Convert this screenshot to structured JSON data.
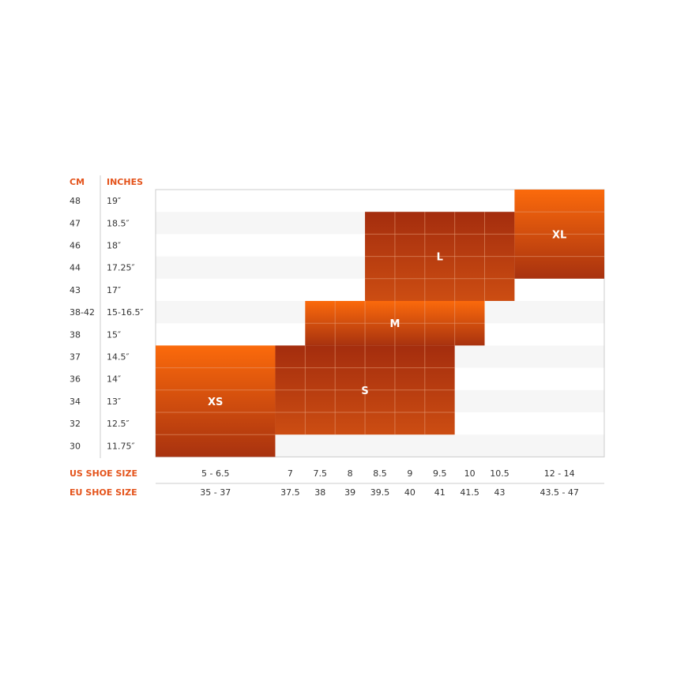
{
  "chart_data": {
    "type": "heatmap",
    "title": "",
    "headers": {
      "cm": "CM",
      "inches": "INCHES"
    },
    "rows": [
      {
        "cm": "48",
        "inches": "19″"
      },
      {
        "cm": "47",
        "inches": "18.5″"
      },
      {
        "cm": "46",
        "inches": "18″"
      },
      {
        "cm": "44",
        "inches": "17.25″"
      },
      {
        "cm": "43",
        "inches": "17″"
      },
      {
        "cm": "38-42",
        "inches": "15-16.5″"
      },
      {
        "cm": "38",
        "inches": "15″"
      },
      {
        "cm": "37",
        "inches": "14.5″"
      },
      {
        "cm": "36",
        "inches": "14″"
      },
      {
        "cm": "34",
        "inches": "13″"
      },
      {
        "cm": "32",
        "inches": "12.5″"
      },
      {
        "cm": "30",
        "inches": "11.75″"
      }
    ],
    "axis_labels": {
      "us": "US SHOE SIZE",
      "eu": "EU SHOE SIZE"
    },
    "columns": [
      {
        "us": "5 - 6.5",
        "eu": "35 - 37",
        "width": 4
      },
      {
        "us": "7",
        "eu": "37.5",
        "width": 1
      },
      {
        "us": "7.5",
        "eu": "38",
        "width": 1
      },
      {
        "us": "8",
        "eu": "39",
        "width": 1
      },
      {
        "us": "8.5",
        "eu": "39.5",
        "width": 1
      },
      {
        "us": "9",
        "eu": "40",
        "width": 1
      },
      {
        "us": "9.5",
        "eu": "41",
        "width": 1
      },
      {
        "us": "10",
        "eu": "41.5",
        "width": 1
      },
      {
        "us": "10.5",
        "eu": "43",
        "width": 1
      },
      {
        "us": "12 - 14",
        "eu": "43.5 - 47",
        "width": 3
      }
    ],
    "sizes": [
      {
        "label": "XS",
        "us_from": "5 - 6.5",
        "us_to": "5 - 6.5",
        "cm_from": "37",
        "cm_to": "30",
        "tone": "bright"
      },
      {
        "label": "S",
        "us_from": "7",
        "us_to": "9.5",
        "cm_from": "37",
        "cm_to": "32",
        "tone": "dark"
      },
      {
        "label": "M",
        "us_from": "7.5",
        "us_to": "10",
        "cm_from": "38-42",
        "cm_to": "38",
        "tone": "bright"
      },
      {
        "label": "L",
        "us_from": "8.5",
        "us_to": "10.5",
        "cm_from": "47",
        "cm_to": "43",
        "tone": "dark"
      },
      {
        "label": "XL",
        "us_from": "12 - 14",
        "us_to": "12 - 14",
        "cm_from": "48",
        "cm_to": "44",
        "tone": "bright"
      }
    ],
    "colors": {
      "header": "#e4531b",
      "bright_top": "#fb6a0c",
      "bright_bottom": "#a8320f",
      "dark_top": "#a42d0e",
      "dark_bottom": "#cc4d12",
      "grid_line": "#e8a07a",
      "stripe": "#f6f6f6",
      "frame": "#cccccc"
    }
  }
}
